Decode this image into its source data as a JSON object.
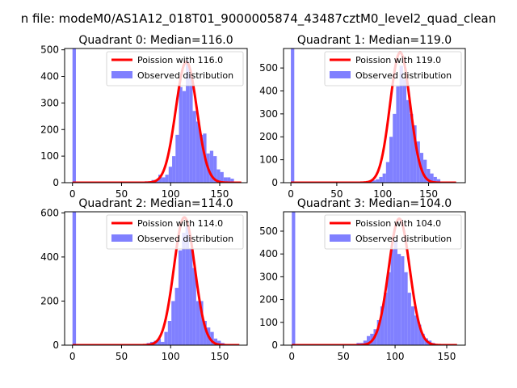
{
  "figure": {
    "suptitle": "n file: modeM0/AS1A12_018T01_9000005874_43487cztM0_level2_quad_clean"
  },
  "colors": {
    "hist": "#8080ff",
    "fit": "#ff0000",
    "axis": "#000000",
    "background": "#ffffff"
  },
  "chart_data": [
    {
      "type": "bar+line",
      "title": "Quadrant 0: Median=116.0",
      "xlim": [
        -8,
        178
      ],
      "ylim": [
        0,
        505
      ],
      "xticks": [
        0,
        50,
        100,
        150
      ],
      "yticks": [
        0,
        100,
        200,
        300,
        400,
        500
      ],
      "legend": {
        "position": "upper right",
        "entries": [
          "Poission with 116.0",
          "Observed distribution"
        ]
      },
      "histogram": {
        "name": "Observed distribution",
        "bin_width": 3.5,
        "bins": [
          {
            "x": 0,
            "count": 505
          },
          {
            "x": 73.5,
            "count": 5
          },
          {
            "x": 77,
            "count": 5
          },
          {
            "x": 80.5,
            "count": 10
          },
          {
            "x": 84,
            "count": 10
          },
          {
            "x": 87.5,
            "count": 30
          },
          {
            "x": 91,
            "count": 20
          },
          {
            "x": 94.5,
            "count": 30
          },
          {
            "x": 98,
            "count": 60
          },
          {
            "x": 101.5,
            "count": 100
          },
          {
            "x": 105,
            "count": 180
          },
          {
            "x": 108.5,
            "count": 360
          },
          {
            "x": 112,
            "count": 345
          },
          {
            "x": 115.5,
            "count": 460
          },
          {
            "x": 119,
            "count": 410
          },
          {
            "x": 122.5,
            "count": 270
          },
          {
            "x": 126,
            "count": 230
          },
          {
            "x": 129.5,
            "count": 180
          },
          {
            "x": 133,
            "count": 185
          },
          {
            "x": 136.5,
            "count": 110
          },
          {
            "x": 140,
            "count": 120
          },
          {
            "x": 143.5,
            "count": 100
          },
          {
            "x": 147,
            "count": 50
          },
          {
            "x": 150.5,
            "count": 40
          },
          {
            "x": 154,
            "count": 20
          },
          {
            "x": 157.5,
            "count": 20
          },
          {
            "x": 161,
            "count": 15
          }
        ]
      },
      "fit": {
        "name": "Poission with 116.0",
        "mean": 116.0,
        "x_range": [
          0,
          172
        ],
        "peak": 455
      }
    },
    {
      "type": "bar+line",
      "title": "Quadrant 1: Median=119.0",
      "xlim": [
        -8,
        190
      ],
      "ylim": [
        0,
        585
      ],
      "xticks": [
        0,
        50,
        100,
        150
      ],
      "yticks": [
        0,
        100,
        200,
        300,
        400,
        500
      ],
      "legend": {
        "position": "upper right",
        "entries": [
          "Poission with 119.0",
          "Observed distribution"
        ]
      },
      "histogram": {
        "name": "Observed distribution",
        "bin_width": 3.7,
        "bins": [
          {
            "x": 0,
            "count": 585
          },
          {
            "x": 81.4,
            "count": 5
          },
          {
            "x": 85.1,
            "count": 5
          },
          {
            "x": 88.8,
            "count": 10
          },
          {
            "x": 92.5,
            "count": 15
          },
          {
            "x": 96.2,
            "count": 25
          },
          {
            "x": 99.9,
            "count": 40
          },
          {
            "x": 103.6,
            "count": 90
          },
          {
            "x": 107.3,
            "count": 200
          },
          {
            "x": 111,
            "count": 300
          },
          {
            "x": 114.7,
            "count": 420
          },
          {
            "x": 118.4,
            "count": 510
          },
          {
            "x": 122.1,
            "count": 450
          },
          {
            "x": 125.8,
            "count": 360
          },
          {
            "x": 129.5,
            "count": 300
          },
          {
            "x": 133.2,
            "count": 250
          },
          {
            "x": 136.9,
            "count": 180
          },
          {
            "x": 140.6,
            "count": 130
          },
          {
            "x": 144.3,
            "count": 100
          },
          {
            "x": 148,
            "count": 60
          },
          {
            "x": 151.7,
            "count": 40
          },
          {
            "x": 155.4,
            "count": 25
          },
          {
            "x": 159.1,
            "count": 15
          },
          {
            "x": 162.8,
            "count": 5
          }
        ]
      },
      "fit": {
        "name": "Poission with 119.0",
        "mean": 119.0,
        "x_range": [
          0,
          180
        ],
        "peak": 568
      }
    },
    {
      "type": "bar+line",
      "title": "Quadrant 2: Median=114.0",
      "xlim": [
        -8,
        178
      ],
      "ylim": [
        0,
        605
      ],
      "xticks": [
        0,
        50,
        100,
        150
      ],
      "yticks": [
        0,
        200,
        400,
        600
      ],
      "legend": {
        "position": "upper right",
        "entries": [
          "Poission with 114.0",
          "Observed distribution"
        ]
      },
      "histogram": {
        "name": "Observed distribution",
        "bin_width": 3.6,
        "bins": [
          {
            "x": 0,
            "count": 605
          },
          {
            "x": 72,
            "count": 5
          },
          {
            "x": 75.6,
            "count": 10
          },
          {
            "x": 79.2,
            "count": 15
          },
          {
            "x": 82.8,
            "count": 20
          },
          {
            "x": 86.4,
            "count": 30
          },
          {
            "x": 90,
            "count": 15
          },
          {
            "x": 93.6,
            "count": 60
          },
          {
            "x": 97.2,
            "count": 110
          },
          {
            "x": 100.8,
            "count": 200
          },
          {
            "x": 104.4,
            "count": 260
          },
          {
            "x": 108,
            "count": 430
          },
          {
            "x": 111.6,
            "count": 510
          },
          {
            "x": 115.2,
            "count": 540
          },
          {
            "x": 118.8,
            "count": 440
          },
          {
            "x": 122.4,
            "count": 350
          },
          {
            "x": 126,
            "count": 200
          },
          {
            "x": 129.6,
            "count": 200
          },
          {
            "x": 133.2,
            "count": 110
          },
          {
            "x": 136.8,
            "count": 80
          },
          {
            "x": 140.4,
            "count": 60
          },
          {
            "x": 144,
            "count": 30
          },
          {
            "x": 147.6,
            "count": 20
          },
          {
            "x": 151.2,
            "count": 10
          }
        ]
      },
      "fit": {
        "name": "Poission with 114.0",
        "mean": 114.0,
        "x_range": [
          0,
          170
        ],
        "peak": 580
      }
    },
    {
      "type": "bar+line",
      "title": "Quadrant 3: Median=104.0",
      "xlim": [
        -8,
        168
      ],
      "ylim": [
        0,
        585
      ],
      "xticks": [
        0,
        50,
        100,
        150
      ],
      "yticks": [
        0,
        100,
        200,
        300,
        400,
        500
      ],
      "legend": {
        "position": "upper right",
        "entries": [
          "Poission with 104.0",
          "Observed distribution"
        ]
      },
      "histogram": {
        "name": "Observed distribution",
        "bin_width": 3.3,
        "bins": [
          {
            "x": 0,
            "count": 585
          },
          {
            "x": 52.8,
            "count": 5
          },
          {
            "x": 56.1,
            "count": 5
          },
          {
            "x": 59.4,
            "count": 5
          },
          {
            "x": 62.7,
            "count": 10
          },
          {
            "x": 66,
            "count": 10
          },
          {
            "x": 69.3,
            "count": 20
          },
          {
            "x": 72.6,
            "count": 40
          },
          {
            "x": 75.9,
            "count": 50
          },
          {
            "x": 79.2,
            "count": 70
          },
          {
            "x": 82.5,
            "count": 110
          },
          {
            "x": 85.8,
            "count": 170
          },
          {
            "x": 89.1,
            "count": 230
          },
          {
            "x": 92.4,
            "count": 320
          },
          {
            "x": 95.7,
            "count": 420
          },
          {
            "x": 99,
            "count": 460
          },
          {
            "x": 102.3,
            "count": 400
          },
          {
            "x": 105.6,
            "count": 390
          },
          {
            "x": 108.9,
            "count": 320
          },
          {
            "x": 112.2,
            "count": 230
          },
          {
            "x": 115.5,
            "count": 170
          },
          {
            "x": 118.8,
            "count": 130
          },
          {
            "x": 122.1,
            "count": 90
          },
          {
            "x": 125.4,
            "count": 50
          },
          {
            "x": 128.7,
            "count": 30
          },
          {
            "x": 132,
            "count": 20
          },
          {
            "x": 135.3,
            "count": 10
          },
          {
            "x": 138.6,
            "count": 5
          }
        ]
      },
      "fit": {
        "name": "Poission with 104.0",
        "mean": 104.0,
        "x_range": [
          0,
          160
        ],
        "peak": 555
      }
    }
  ]
}
